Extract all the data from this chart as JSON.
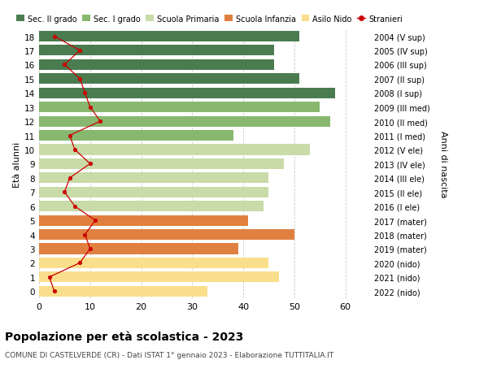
{
  "ages": [
    0,
    1,
    2,
    3,
    4,
    5,
    6,
    7,
    8,
    9,
    10,
    11,
    12,
    13,
    14,
    15,
    16,
    17,
    18
  ],
  "right_labels": [
    "2022 (nido)",
    "2021 (nido)",
    "2020 (nido)",
    "2019 (mater)",
    "2018 (mater)",
    "2017 (mater)",
    "2016 (I ele)",
    "2015 (II ele)",
    "2014 (III ele)",
    "2013 (IV ele)",
    "2012 (V ele)",
    "2011 (I med)",
    "2010 (II med)",
    "2009 (III med)",
    "2008 (I sup)",
    "2007 (II sup)",
    "2006 (III sup)",
    "2005 (IV sup)",
    "2004 (V sup)"
  ],
  "bar_values": [
    33,
    47,
    45,
    39,
    50,
    41,
    44,
    45,
    45,
    48,
    53,
    38,
    57,
    55,
    58,
    51,
    46,
    46,
    51
  ],
  "bar_colors": [
    "#f9de8c",
    "#f9de8c",
    "#f9de8c",
    "#e08040",
    "#e08040",
    "#e08040",
    "#c8dba8",
    "#c8dba8",
    "#c8dba8",
    "#c8dba8",
    "#c8dba8",
    "#88b870",
    "#88b870",
    "#88b870",
    "#4a7c50",
    "#4a7c50",
    "#4a7c50",
    "#4a7c50",
    "#4a7c50"
  ],
  "stranieri_values": [
    3,
    2,
    8,
    10,
    9,
    11,
    7,
    5,
    6,
    10,
    7,
    6,
    12,
    10,
    9,
    8,
    5,
    8,
    3
  ],
  "legend_labels": [
    "Sec. II grado",
    "Sec. I grado",
    "Scuola Primaria",
    "Scuola Infanzia",
    "Asilo Nido",
    "Stranieri"
  ],
  "legend_colors": [
    "#4a7c50",
    "#88b870",
    "#c8dba8",
    "#e08040",
    "#f9de8c",
    "#cc0000"
  ],
  "title": "Popolazione per età scolastica - 2023",
  "subtitle": "COMUNE DI CASTELVERDE (CR) - Dati ISTAT 1° gennaio 2023 - Elaborazione TUTTITALIA.IT",
  "ylabel_left": "Età alunni",
  "ylabel_right": "Anni di nascita",
  "xlim": [
    0,
    65
  ],
  "xticks": [
    0,
    10,
    20,
    30,
    40,
    50,
    60
  ],
  "background_color": "#ffffff",
  "grid_color": "#cccccc",
  "bar_height": 0.75
}
